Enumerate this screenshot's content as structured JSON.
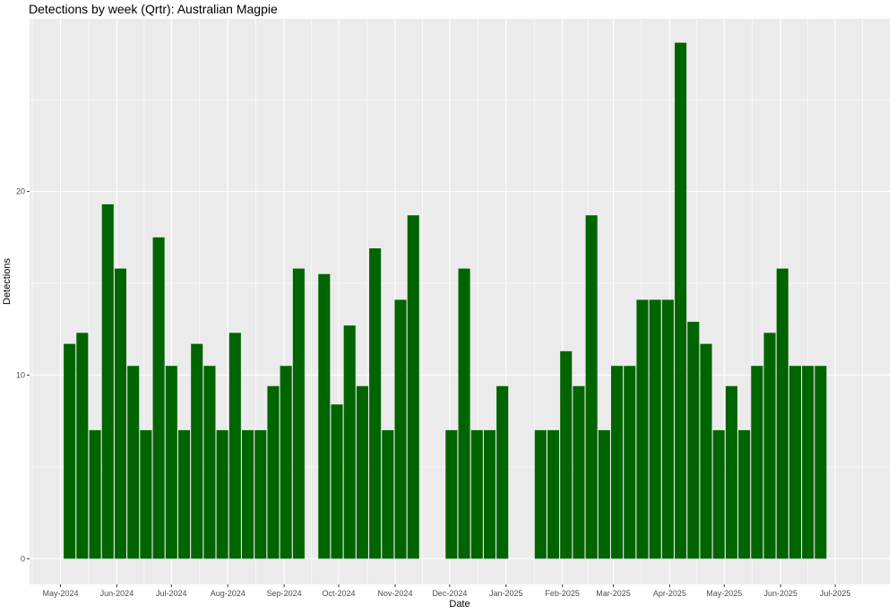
{
  "chart_data": {
    "type": "bar",
    "title": "Detections by week (Qrtr): Australian Magpie",
    "xlabel": "Date",
    "ylabel": "Detections",
    "bar_color": "#006400",
    "panel_color": "#EBEBEB",
    "grid": true,
    "xlim": [
      "2024-04-14",
      "2025-07-31"
    ],
    "ylim": [
      -1.4,
      29.4
    ],
    "y_ticks": [
      0,
      10,
      20
    ],
    "x_ticks": [
      {
        "date": "2024-05-01",
        "label": "May-2024"
      },
      {
        "date": "2024-06-01",
        "label": "Jun-2024"
      },
      {
        "date": "2024-07-01",
        "label": "Jul-2024"
      },
      {
        "date": "2024-08-01",
        "label": "Aug-2024"
      },
      {
        "date": "2024-09-01",
        "label": "Sep-2024"
      },
      {
        "date": "2024-10-01",
        "label": "Oct-2024"
      },
      {
        "date": "2024-11-01",
        "label": "Nov-2024"
      },
      {
        "date": "2024-12-01",
        "label": "Dec-2024"
      },
      {
        "date": "2025-01-01",
        "label": "Jan-2025"
      },
      {
        "date": "2025-02-01",
        "label": "Feb-2025"
      },
      {
        "date": "2025-03-01",
        "label": "Mar-2025"
      },
      {
        "date": "2025-04-01",
        "label": "Apr-2025"
      },
      {
        "date": "2025-05-01",
        "label": "May-2025"
      },
      {
        "date": "2025-06-01",
        "label": "Jun-2025"
      },
      {
        "date": "2025-07-01",
        "label": "Jul-2025"
      }
    ],
    "x": [
      "2024-05-06",
      "2024-05-13",
      "2024-05-20",
      "2024-05-27",
      "2024-06-03",
      "2024-06-10",
      "2024-06-17",
      "2024-06-24",
      "2024-07-01",
      "2024-07-08",
      "2024-07-15",
      "2024-07-22",
      "2024-07-29",
      "2024-08-05",
      "2024-08-12",
      "2024-08-19",
      "2024-08-26",
      "2024-09-02",
      "2024-09-09",
      "2024-09-23",
      "2024-09-30",
      "2024-10-07",
      "2024-10-14",
      "2024-10-21",
      "2024-10-28",
      "2024-11-04",
      "2024-11-11",
      "2024-12-02",
      "2024-12-09",
      "2024-12-16",
      "2024-12-23",
      "2024-12-30",
      "2025-01-20",
      "2025-01-27",
      "2025-02-03",
      "2025-02-10",
      "2025-02-17",
      "2025-02-24",
      "2025-03-03",
      "2025-03-10",
      "2025-03-17",
      "2025-03-24",
      "2025-03-31",
      "2025-04-07",
      "2025-04-14",
      "2025-04-21",
      "2025-04-28",
      "2025-05-05",
      "2025-05-12",
      "2025-05-19",
      "2025-05-26",
      "2025-06-02",
      "2025-06-09",
      "2025-06-16",
      "2025-06-23"
    ],
    "values": [
      11.7,
      12.3,
      7.0,
      19.3,
      15.8,
      10.5,
      7.0,
      17.5,
      10.5,
      7.0,
      11.7,
      10.5,
      7.0,
      12.3,
      7.0,
      7.0,
      9.4,
      10.5,
      15.8,
      15.5,
      8.4,
      12.7,
      9.4,
      16.9,
      7.0,
      14.1,
      18.7,
      7.0,
      15.8,
      7.0,
      7.0,
      9.4,
      7.0,
      7.0,
      11.3,
      9.4,
      18.7,
      7.0,
      10.5,
      10.5,
      14.1,
      14.1,
      14.1,
      28.1,
      12.9,
      11.7,
      7.0,
      9.4,
      7.0,
      10.5,
      12.3,
      15.8,
      10.5,
      10.5,
      10.5
    ]
  }
}
